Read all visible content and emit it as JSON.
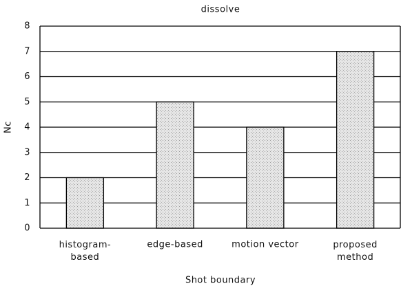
{
  "chart_data": {
    "type": "bar",
    "title": "dissolve",
    "x_label": "Shot boundary",
    "y_label": "Nc",
    "categories": [
      "histogram-\nbased",
      "edge-based",
      "motion vector",
      "proposed\nmethod"
    ],
    "values": [
      2,
      5,
      4,
      7
    ],
    "color": "#dcdcdc",
    "ylim": [
      0,
      8
    ],
    "yticks": [
      0,
      1,
      2,
      3,
      4,
      5,
      6,
      7,
      8
    ],
    "grid": true
  }
}
